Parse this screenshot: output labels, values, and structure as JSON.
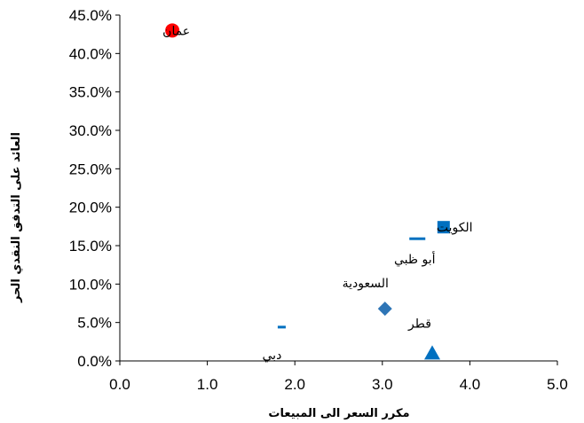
{
  "chart_data": {
    "type": "scatter",
    "xlabel": "مكرر السعر الى المبيعات",
    "ylabel": "العائد على التدفق النقدي الحر",
    "xlim": [
      0,
      5
    ],
    "ylim": [
      0,
      0.45
    ],
    "x_ticks": [
      "0.0",
      "1.0",
      "2.0",
      "3.0",
      "4.0",
      "5.0"
    ],
    "y_ticks": [
      "0.0%",
      "5.0%",
      "10.0%",
      "15.0%",
      "20.0%",
      "25.0%",
      "30.0%",
      "35.0%",
      "40.0%",
      "45.0%"
    ],
    "grid": false,
    "points": [
      {
        "label": "عمان",
        "x": 0.6,
        "y": 0.43,
        "marker": "circle",
        "color": "#ff0000"
      },
      {
        "label": "الكويت",
        "x": 3.7,
        "y": 0.174,
        "marker": "square",
        "color": "#0070c0"
      },
      {
        "label": "أبو ظبي",
        "x": 3.4,
        "y": 0.159,
        "marker": "dash",
        "color": "#0070c0"
      },
      {
        "label": "السعودية",
        "x": 3.03,
        "y": 0.068,
        "marker": "diamond",
        "color": "#2e75b6"
      },
      {
        "label": "دبي",
        "x": 1.85,
        "y": 0.044,
        "marker": "dash",
        "color": "#0070c0"
      },
      {
        "label": "قطر",
        "x": 3.57,
        "y": 0.01,
        "marker": "triangle",
        "color": "#0070c0"
      }
    ]
  }
}
